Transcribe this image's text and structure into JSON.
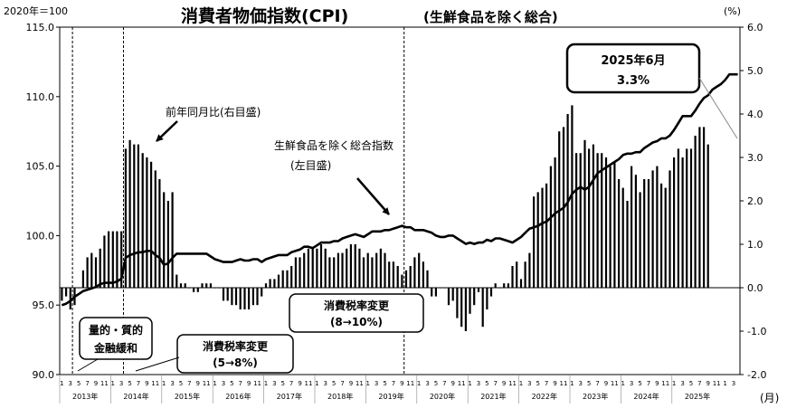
{
  "chart_data": {
    "type": "bar+line",
    "title": "消費者物価指数(CPI)",
    "subtitle": "(生鮮食品を除く総合)",
    "left_axis": {
      "unit": "2020年＝100",
      "range": [
        90.0,
        115.0
      ],
      "ticks": [
        "115.0",
        "110.0",
        "105.0",
        "100.0",
        "95.0",
        "90.0"
      ]
    },
    "right_axis": {
      "unit": "(%)",
      "range": [
        -2.0,
        6.0
      ],
      "ticks": [
        "6.0",
        "5.0",
        "4.0",
        "3.0",
        "2.0",
        "1.0",
        "0.0",
        "-1.0",
        "-2.0"
      ]
    },
    "x_axis_unit": "(月)",
    "month_ticks": [
      "1",
      "3",
      "5",
      "7",
      "9",
      "11"
    ],
    "years": [
      "2013年",
      "2014年",
      "2015年",
      "2016年",
      "2017年",
      "2018年",
      "2019年",
      "2020年",
      "2021年",
      "2022年",
      "2023年",
      "2024年",
      "2025年"
    ],
    "start": "2013-01",
    "end": "2025-06",
    "series": [
      {
        "name": "前年同月比(右目盛)",
        "kind": "bar",
        "axis": "right",
        "values": [
          -0.3,
          -0.2,
          -0.5,
          -0.4,
          0.0,
          0.4,
          0.7,
          0.8,
          0.7,
          0.9,
          1.2,
          1.3,
          1.3,
          1.3,
          1.3,
          3.2,
          3.4,
          3.3,
          3.3,
          3.1,
          3.0,
          2.9,
          2.7,
          2.5,
          2.2,
          2.0,
          2.2,
          0.3,
          0.1,
          0.1,
          0.0,
          -0.1,
          -0.1,
          0.1,
          0.1,
          0.1,
          0.0,
          0.0,
          -0.3,
          -0.3,
          -0.4,
          -0.4,
          -0.5,
          -0.5,
          -0.5,
          -0.4,
          -0.4,
          -0.2,
          0.1,
          0.2,
          0.2,
          0.3,
          0.4,
          0.4,
          0.5,
          0.7,
          0.7,
          0.8,
          0.9,
          0.9,
          0.9,
          1.0,
          0.9,
          0.7,
          0.7,
          0.8,
          0.8,
          0.9,
          1.0,
          1.0,
          0.9,
          0.7,
          0.8,
          0.7,
          0.8,
          0.9,
          0.8,
          0.6,
          0.6,
          0.5,
          0.3,
          0.4,
          0.5,
          0.7,
          0.8,
          0.6,
          0.4,
          -0.2,
          -0.2,
          0.0,
          0.0,
          -0.4,
          -0.3,
          -0.7,
          -0.9,
          -1.0,
          -0.6,
          -0.4,
          -0.1,
          -0.9,
          -0.5,
          -0.2,
          0.1,
          0.0,
          0.1,
          0.1,
          0.5,
          0.6,
          0.2,
          0.6,
          0.8,
          2.1,
          2.2,
          2.3,
          2.4,
          2.8,
          3.0,
          3.6,
          3.7,
          4.0,
          4.2,
          3.1,
          3.1,
          3.4,
          3.2,
          3.3,
          3.1,
          3.1,
          3.0,
          2.8,
          2.9,
          2.5,
          2.3,
          2.0,
          2.8,
          2.6,
          2.2,
          2.5,
          2.5,
          2.7,
          2.8,
          2.4,
          2.3,
          2.7,
          3.0,
          3.2,
          3.0,
          3.2,
          3.2,
          3.5,
          3.7,
          3.7,
          3.3
        ]
      },
      {
        "name": "生鮮食品を除く総合指数(左目盛)",
        "kind": "line",
        "axis": "left",
        "values": [
          95.0,
          95.1,
          95.3,
          95.6,
          95.8,
          96.0,
          96.1,
          96.2,
          96.3,
          96.5,
          96.6,
          96.6,
          96.6,
          96.7,
          96.9,
          98.4,
          98.6,
          98.7,
          98.8,
          98.8,
          98.9,
          98.9,
          98.6,
          98.4,
          97.9,
          98.0,
          98.4,
          98.7,
          98.7,
          98.7,
          98.7,
          98.7,
          98.7,
          98.7,
          98.7,
          98.5,
          98.3,
          98.2,
          98.1,
          98.1,
          98.1,
          98.2,
          98.3,
          98.2,
          98.2,
          98.3,
          98.3,
          98.1,
          98.3,
          98.4,
          98.5,
          98.6,
          98.6,
          98.6,
          98.8,
          98.9,
          99.0,
          99.2,
          99.2,
          99.1,
          99.3,
          99.5,
          99.5,
          99.5,
          99.6,
          99.6,
          99.8,
          99.9,
          100.0,
          100.1,
          100.0,
          99.9,
          100.1,
          100.3,
          100.3,
          100.3,
          100.4,
          100.4,
          100.5,
          100.6,
          100.7,
          100.6,
          100.6,
          100.4,
          100.4,
          100.4,
          100.3,
          100.2,
          100.0,
          99.9,
          99.9,
          100.0,
          100.0,
          99.8,
          99.6,
          99.4,
          99.5,
          99.4,
          99.5,
          99.5,
          99.7,
          99.6,
          99.8,
          99.8,
          99.7,
          99.6,
          99.5,
          99.7,
          99.9,
          100.2,
          100.5,
          100.6,
          100.7,
          100.9,
          101.0,
          101.3,
          101.6,
          101.8,
          102.0,
          102.4,
          103.0,
          103.3,
          103.5,
          103.3,
          103.5,
          104.0,
          104.5,
          104.7,
          104.9,
          105.1,
          105.3,
          105.5,
          105.8,
          105.9,
          105.9,
          106.0,
          106.0,
          106.3,
          106.5,
          106.7,
          106.8,
          107.0,
          107.0,
          107.2,
          107.6,
          108.1,
          108.6,
          108.6,
          108.6,
          109.0,
          109.5,
          109.9,
          110.1,
          110.5,
          110.7,
          110.9,
          111.2,
          111.6,
          111.6,
          111.6
        ]
      }
    ],
    "annotations": [
      {
        "text": "前年同月比(右目盛)"
      },
      {
        "text": "生鮮食品を除く総合指数",
        "text2": "(左目盛)"
      },
      {
        "text": "消費税率変更",
        "text2": "(8→10%)"
      },
      {
        "text": "量的・質的",
        "text2": "金融緩和"
      },
      {
        "text": "消費税率変更",
        "text2": "(5→8%)"
      },
      {
        "text": "2025年6月",
        "text2": "3.3%"
      }
    ],
    "markers": [
      {
        "label": "量的・質的金融緩和",
        "date": "2013-04"
      },
      {
        "label": "消費税率変更(5→8%)",
        "date": "2014-04"
      },
      {
        "label": "消費税率変更(8→10%)",
        "date": "2019-10"
      }
    ],
    "grid": false,
    "legend": "none"
  }
}
